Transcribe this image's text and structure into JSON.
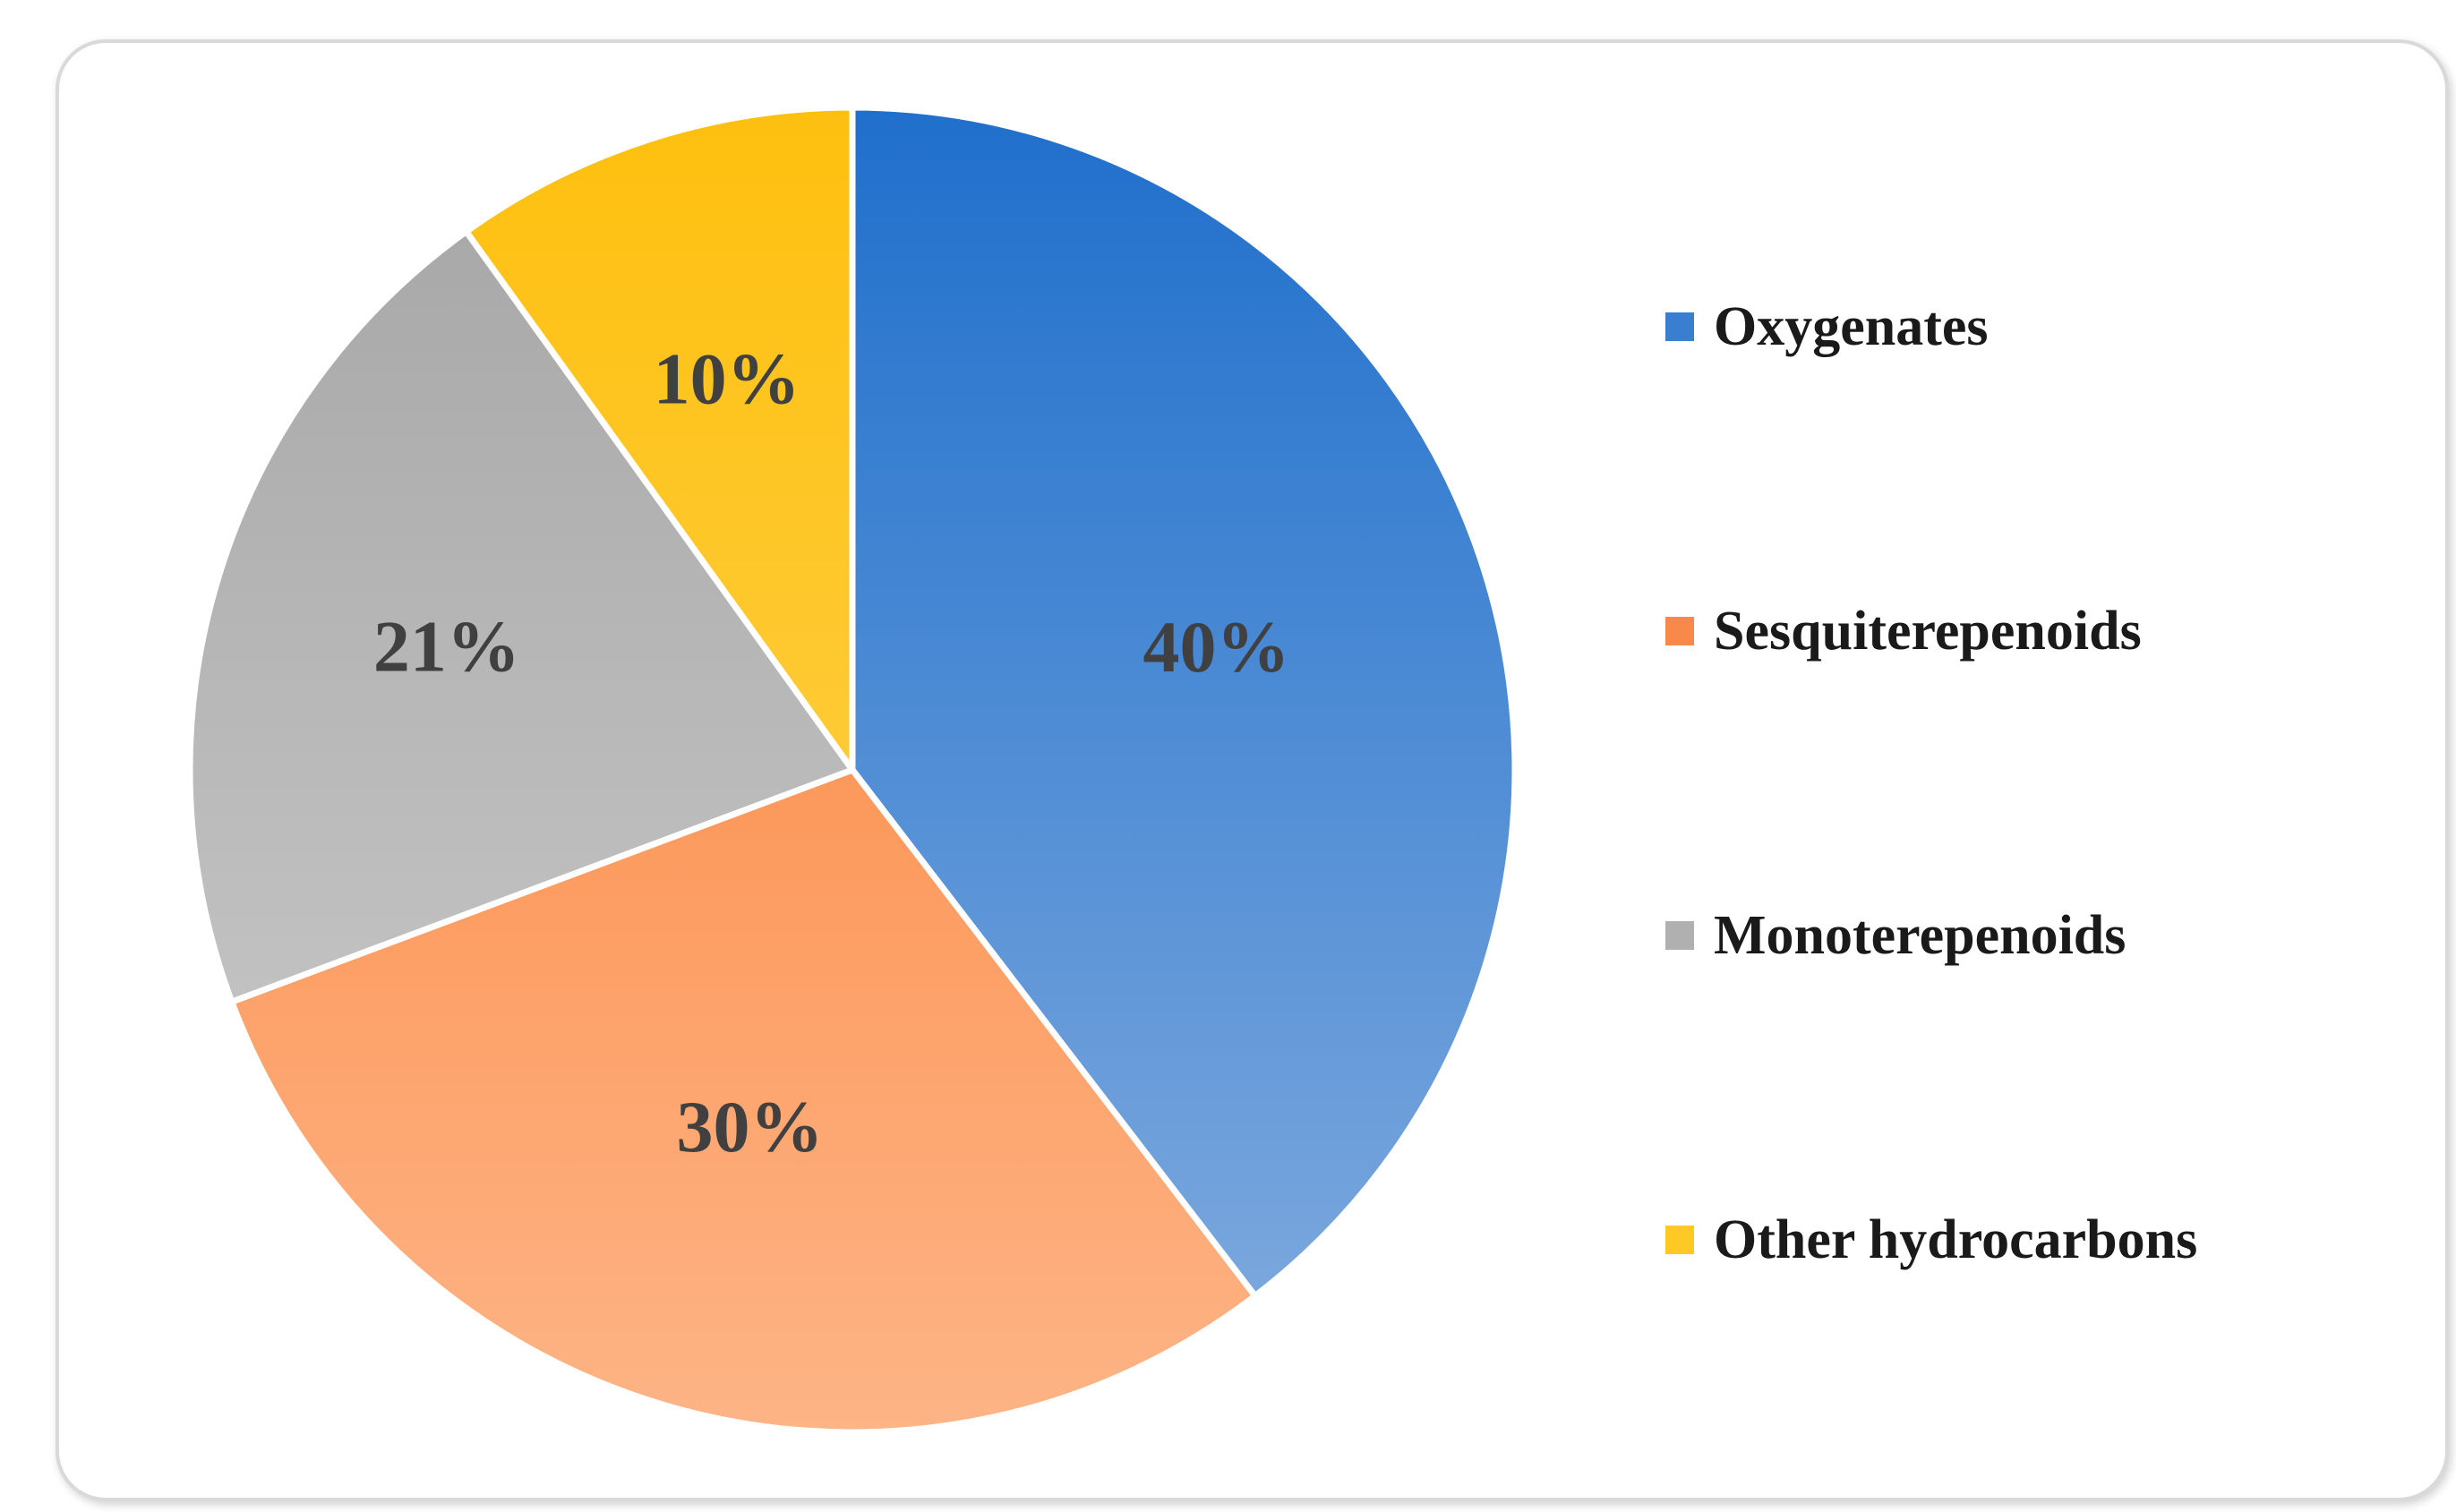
{
  "chart_data": {
    "type": "pie",
    "title": "",
    "categories": [
      "Oxygenates",
      "Sesquiterepenoids",
      "Monoterepenoids",
      "Other hydrocarbons"
    ],
    "values": [
      40,
      30,
      21,
      10
    ],
    "data_labels": [
      "40%",
      "30%",
      "21%",
      "10%"
    ],
    "unit": "%",
    "legend_position": "right",
    "colors": {
      "Oxygenates": [
        "#1f6fcc",
        "#84addf"
      ],
      "Sesquiterepenoids": [
        "#fc7c2f",
        "#fdb486"
      ],
      "Monoterepenoids": [
        "#a5a5a5",
        "#cfcfcf"
      ],
      "Other hydrocarbons": [
        "#fec00f",
        "#fdd55c"
      ]
    }
  },
  "legend": {
    "items": [
      {
        "label": "Oxygenates",
        "color": "#3a7ed1"
      },
      {
        "label": "Sesquiterepenoids",
        "color": "#f9894a"
      },
      {
        "label": "Monoterepenoids",
        "color": "#b0b0b0"
      },
      {
        "label": "Other hydrocarbons",
        "color": "#fec924"
      }
    ]
  }
}
